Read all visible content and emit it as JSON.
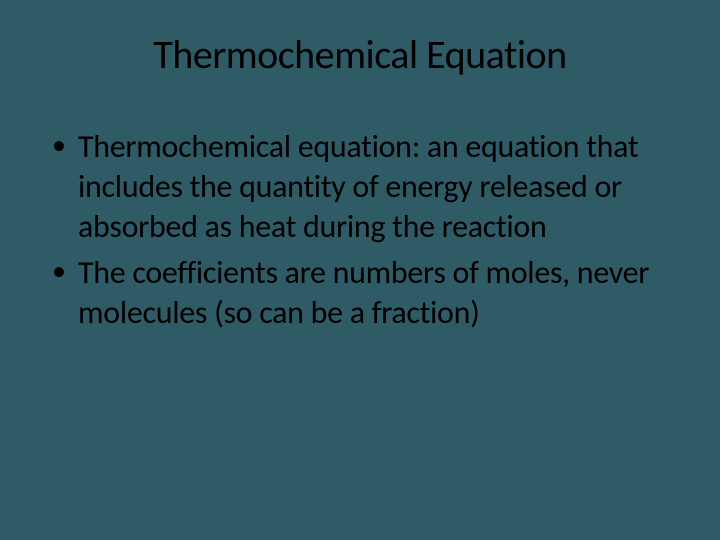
{
  "slide": {
    "title": "Thermochemical Equation",
    "bullets": [
      "Thermochemical equation: an equation that includes the quantity of energy released or absorbed as heat during the reaction",
      "The coefficients are numbers of moles, never molecules (so can be a fraction)"
    ],
    "background_color": "#2f5b66",
    "text_color": "#000000",
    "title_fontsize": 40,
    "body_fontsize": 32,
    "font_family": "Calibri"
  }
}
